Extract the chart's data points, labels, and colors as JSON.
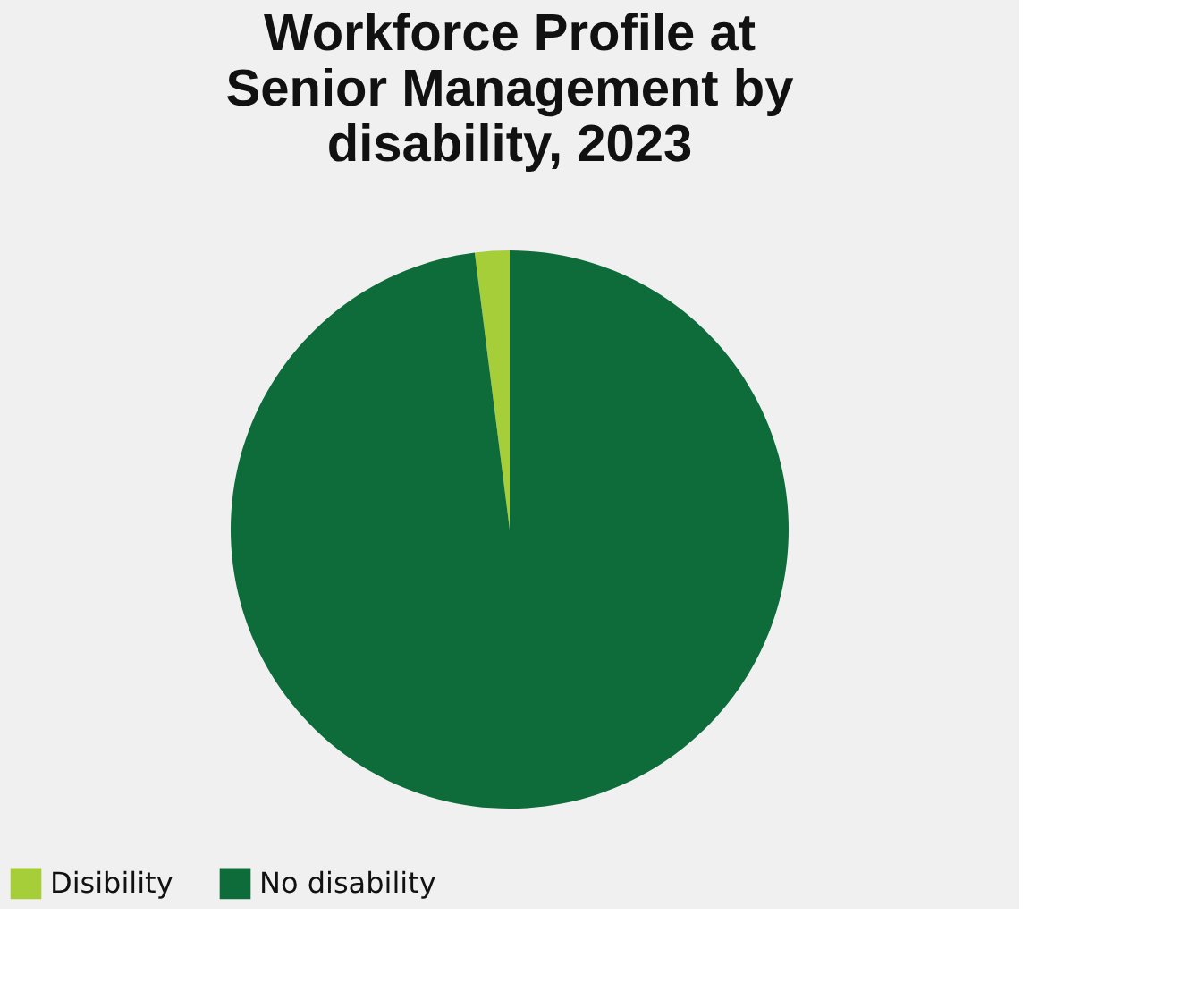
{
  "chart_data": {
    "type": "pie",
    "title": "Workforce Profile at Senior Management by disability, 2023",
    "categories": [
      "Disibility",
      "No disability"
    ],
    "values": [
      2,
      98
    ],
    "colors": [
      "#a6ce39",
      "#0e6b3a"
    ],
    "legend": "bottom"
  }
}
